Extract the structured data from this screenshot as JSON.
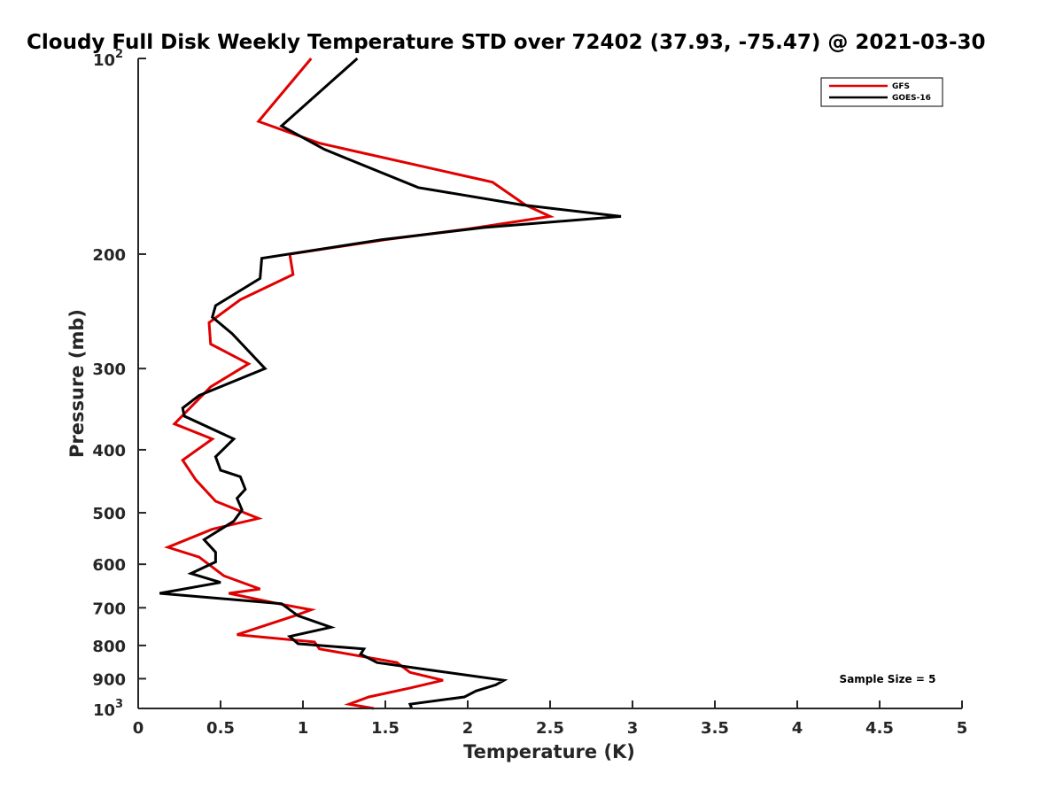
{
  "chart_data": {
    "type": "line",
    "title": "Cloudy Full Disk Weekly Temperature STD over 72402 (37.93, -75.47) @ 2021-03-30",
    "xlabel": "Temperature (K)",
    "ylabel": "Pressure (mb)",
    "xlim": [
      0,
      5
    ],
    "ylim": [
      100,
      1000
    ],
    "y_scale": "log",
    "y_reversed": true,
    "grid": false,
    "legend_position": "top-right",
    "x_ticks": [
      {
        "value": 0,
        "label": "0"
      },
      {
        "value": 0.5,
        "label": "0.5"
      },
      {
        "value": 1,
        "label": "1"
      },
      {
        "value": 1.5,
        "label": "1.5"
      },
      {
        "value": 2,
        "label": "2"
      },
      {
        "value": 2.5,
        "label": "2.5"
      },
      {
        "value": 3,
        "label": "3"
      },
      {
        "value": 3.5,
        "label": "3.5"
      },
      {
        "value": 4,
        "label": "4"
      },
      {
        "value": 4.5,
        "label": "4.5"
      },
      {
        "value": 5,
        "label": "5"
      }
    ],
    "y_ticks": [
      {
        "value": 100,
        "base": "10",
        "exp": "2"
      },
      {
        "value": 200,
        "base": "200",
        "exp": ""
      },
      {
        "value": 300,
        "base": "300",
        "exp": ""
      },
      {
        "value": 400,
        "base": "400",
        "exp": ""
      },
      {
        "value": 500,
        "base": "500",
        "exp": ""
      },
      {
        "value": 600,
        "base": "600",
        "exp": ""
      },
      {
        "value": 700,
        "base": "700",
        "exp": ""
      },
      {
        "value": 800,
        "base": "800",
        "exp": ""
      },
      {
        "value": 900,
        "base": "900",
        "exp": ""
      },
      {
        "value": 1000,
        "base": "10",
        "exp": "3"
      }
    ],
    "series": [
      {
        "name": "GFS",
        "color": "#e00000",
        "points": [
          [
            1.05,
            100
          ],
          [
            0.73,
            125
          ],
          [
            1.1,
            135
          ],
          [
            2.15,
            155
          ],
          [
            2.35,
            168
          ],
          [
            2.5,
            175
          ],
          [
            2.0,
            183
          ],
          [
            1.5,
            190
          ],
          [
            0.92,
            200
          ],
          [
            0.94,
            215
          ],
          [
            0.62,
            235
          ],
          [
            0.43,
            255
          ],
          [
            0.44,
            275
          ],
          [
            0.67,
            295
          ],
          [
            0.44,
            320
          ],
          [
            0.22,
            365
          ],
          [
            0.45,
            385
          ],
          [
            0.27,
            415
          ],
          [
            0.35,
            445
          ],
          [
            0.47,
            480
          ],
          [
            0.73,
            510
          ],
          [
            0.45,
            530
          ],
          [
            0.18,
            565
          ],
          [
            0.37,
            585
          ],
          [
            0.52,
            625
          ],
          [
            0.74,
            655
          ],
          [
            0.55,
            665
          ],
          [
            0.85,
            690
          ],
          [
            1.05,
            705
          ],
          [
            0.95,
            720
          ],
          [
            0.6,
            770
          ],
          [
            1.07,
            790
          ],
          [
            1.1,
            810
          ],
          [
            1.57,
            850
          ],
          [
            1.65,
            880
          ],
          [
            1.85,
            905
          ],
          [
            1.65,
            930
          ],
          [
            1.4,
            960
          ],
          [
            1.28,
            985
          ],
          [
            1.43,
            1000
          ]
        ]
      },
      {
        "name": "GOES-16",
        "color": "#000000",
        "points": [
          [
            1.33,
            100
          ],
          [
            0.87,
            127
          ],
          [
            1.13,
            138
          ],
          [
            1.7,
            158
          ],
          [
            2.33,
            168
          ],
          [
            2.93,
            175
          ],
          [
            2.1,
            182
          ],
          [
            1.48,
            190
          ],
          [
            0.75,
            203
          ],
          [
            0.74,
            218
          ],
          [
            0.47,
            240
          ],
          [
            0.45,
            250
          ],
          [
            0.57,
            265
          ],
          [
            0.77,
            300
          ],
          [
            0.37,
            330
          ],
          [
            0.27,
            345
          ],
          [
            0.28,
            355
          ],
          [
            0.58,
            385
          ],
          [
            0.47,
            410
          ],
          [
            0.5,
            430
          ],
          [
            0.62,
            440
          ],
          [
            0.65,
            460
          ],
          [
            0.6,
            475
          ],
          [
            0.63,
            495
          ],
          [
            0.58,
            515
          ],
          [
            0.4,
            550
          ],
          [
            0.47,
            575
          ],
          [
            0.47,
            595
          ],
          [
            0.32,
            620
          ],
          [
            0.5,
            640
          ],
          [
            0.13,
            665
          ],
          [
            0.87,
            690
          ],
          [
            0.97,
            720
          ],
          [
            1.17,
            750
          ],
          [
            0.92,
            775
          ],
          [
            0.97,
            795
          ],
          [
            1.37,
            810
          ],
          [
            1.35,
            825
          ],
          [
            1.45,
            850
          ],
          [
            1.8,
            875
          ],
          [
            2.22,
            905
          ],
          [
            2.17,
            920
          ],
          [
            2.05,
            940
          ],
          [
            1.98,
            960
          ],
          [
            1.65,
            985
          ],
          [
            1.66,
            1000
          ]
        ]
      }
    ],
    "annotation": "Sample Size = 5"
  }
}
